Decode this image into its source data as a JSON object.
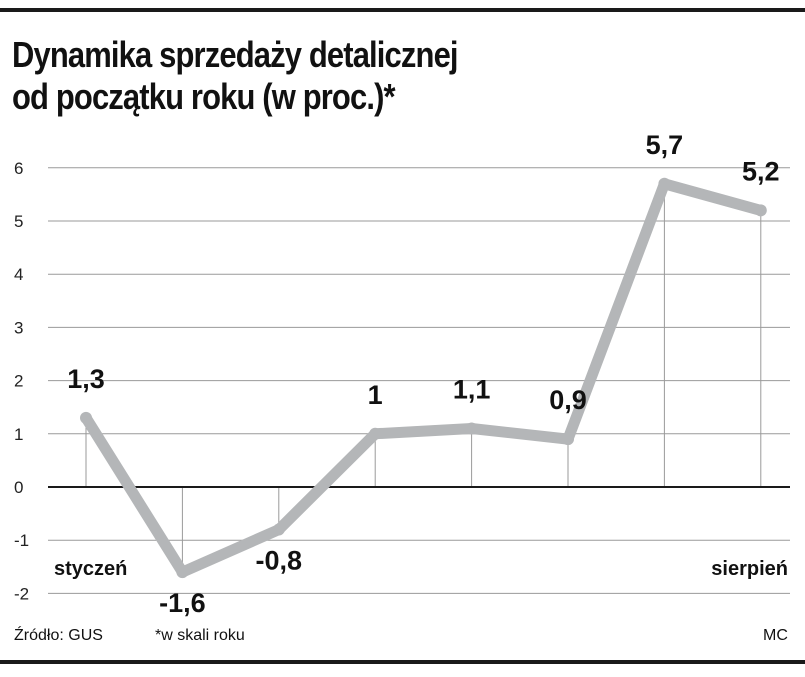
{
  "title_line1": "Dynamika sprzedaży detalicznej",
  "title_line2": "od początku roku (w proc.)*",
  "footer": {
    "source": "Źródło: GUS",
    "note": "*w skali roku",
    "author": "MC"
  },
  "chart_data": {
    "type": "line",
    "title": "Dynamika sprzedaży detalicznej od początku roku (w proc.)*",
    "x": [
      "styczeń",
      "",
      "",
      "",
      "",
      "",
      "",
      "sierpień"
    ],
    "series": [
      {
        "values": [
          1.3,
          -1.6,
          -0.8,
          1,
          1.1,
          0.9,
          5.7,
          5.2
        ]
      }
    ],
    "data_labels": [
      "1,3",
      "-1,6",
      "-0,8",
      "1",
      "1,1",
      "0,9",
      "5,7",
      "5,2"
    ],
    "y_ticks": [
      "6",
      "5",
      "4",
      "3",
      "2",
      "1",
      "0",
      "-1",
      "-2"
    ],
    "ylim": [
      -2,
      6
    ],
    "grid": true,
    "colors": {
      "line": "#b4b6b8",
      "grid": "#9a9a9a",
      "axis": "#1a1a1a"
    }
  }
}
